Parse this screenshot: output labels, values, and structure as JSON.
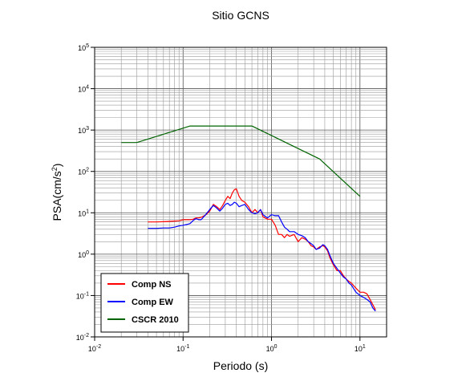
{
  "chart_data": {
    "type": "line",
    "title": "Sitio GCNS",
    "xlabel": "Periodo (s)",
    "ylabel": {
      "base": "PSA(cm/s",
      "sup": "2",
      "tail": ")"
    },
    "xscale": "log",
    "yscale": "log",
    "xlim": [
      0.01,
      20
    ],
    "ylim": [
      0.01,
      100000
    ],
    "grid": true,
    "legend_position": "bottom-left",
    "x_ticks": [
      {
        "base": "10",
        "exp": "-2",
        "value": 0.01
      },
      {
        "base": "10",
        "exp": "-1",
        "value": 0.1
      },
      {
        "base": "10",
        "exp": "0",
        "value": 1
      },
      {
        "base": "10",
        "exp": "1",
        "value": 10
      }
    ],
    "y_ticks": [
      {
        "base": "10",
        "exp": "-2",
        "value": 0.01
      },
      {
        "base": "10",
        "exp": "-1",
        "value": 0.1
      },
      {
        "base": "10",
        "exp": "0",
        "value": 1
      },
      {
        "base": "10",
        "exp": "1",
        "value": 10
      },
      {
        "base": "10",
        "exp": "2",
        "value": 100
      },
      {
        "base": "10",
        "exp": "3",
        "value": 1000
      },
      {
        "base": "10",
        "exp": "4",
        "value": 10000
      },
      {
        "base": "10",
        "exp": "5",
        "value": 100000
      }
    ],
    "series": [
      {
        "name": "Comp NS",
        "color": "#ff0000",
        "x": [
          0.04,
          0.05,
          0.06,
          0.07,
          0.08,
          0.09,
          0.1,
          0.11,
          0.12,
          0.13,
          0.14,
          0.15,
          0.16,
          0.18,
          0.2,
          0.22,
          0.24,
          0.26,
          0.28,
          0.3,
          0.32,
          0.34,
          0.36,
          0.38,
          0.4,
          0.43,
          0.46,
          0.5,
          0.55,
          0.6,
          0.65,
          0.7,
          0.75,
          0.8,
          0.9,
          1.0,
          1.1,
          1.2,
          1.3,
          1.4,
          1.5,
          1.6,
          1.8,
          2.0,
          2.2,
          2.4,
          2.6,
          2.8,
          3.0,
          3.2,
          3.5,
          3.8,
          4.0,
          4.3,
          4.6,
          5.0,
          5.5,
          6.0,
          6.5,
          7.0,
          7.5,
          8.0,
          9.0,
          10.0,
          11.0,
          12.0,
          13.0,
          14.0,
          15.0
        ],
        "values": [
          6.0,
          6.0,
          6.1,
          6.2,
          6.3,
          6.4,
          6.8,
          6.8,
          6.8,
          7.0,
          7.5,
          7.5,
          7.8,
          8.8,
          11.0,
          16.0,
          14.0,
          12.0,
          15.0,
          20.0,
          25.0,
          22.0,
          30.0,
          36.0,
          38.0,
          25.0,
          20.0,
          18.0,
          14.0,
          10.0,
          12.0,
          10.0,
          12.0,
          8.0,
          7.0,
          7.0,
          5.0,
          3.0,
          3.0,
          2.5,
          3.0,
          2.7,
          3.0,
          2.0,
          2.5,
          2.3,
          2.0,
          1.6,
          1.5,
          1.3,
          1.5,
          1.6,
          1.5,
          1.2,
          0.8,
          0.55,
          0.4,
          0.4,
          0.3,
          0.25,
          0.22,
          0.2,
          0.15,
          0.12,
          0.12,
          0.11,
          0.08,
          0.06,
          0.045
        ]
      },
      {
        "name": "Comp EW",
        "color": "#0000ff",
        "x": [
          0.04,
          0.05,
          0.06,
          0.07,
          0.08,
          0.09,
          0.1,
          0.11,
          0.12,
          0.13,
          0.14,
          0.15,
          0.16,
          0.18,
          0.2,
          0.22,
          0.24,
          0.26,
          0.28,
          0.3,
          0.32,
          0.34,
          0.36,
          0.38,
          0.4,
          0.43,
          0.46,
          0.5,
          0.55,
          0.6,
          0.65,
          0.7,
          0.75,
          0.8,
          0.9,
          1.0,
          1.1,
          1.2,
          1.3,
          1.4,
          1.5,
          1.6,
          1.8,
          2.0,
          2.2,
          2.4,
          2.6,
          2.8,
          3.0,
          3.2,
          3.5,
          3.8,
          4.0,
          4.3,
          4.6,
          5.0,
          5.5,
          6.0,
          6.5,
          7.0,
          7.5,
          8.0,
          9.0,
          10.0,
          11.0,
          12.0,
          13.0,
          14.0,
          15.0
        ],
        "values": [
          4.2,
          4.2,
          4.3,
          4.3,
          4.5,
          4.8,
          5.0,
          5.2,
          5.5,
          6.5,
          7.2,
          6.8,
          6.8,
          9.0,
          12.0,
          15.0,
          13.0,
          11.0,
          13.0,
          16.0,
          17.0,
          15.0,
          16.0,
          18.0,
          17.0,
          14.0,
          15.0,
          16.0,
          12.0,
          10.0,
          9.5,
          10.0,
          12.0,
          9.0,
          7.5,
          9.0,
          8.5,
          8.5,
          6.0,
          4.5,
          4.0,
          3.5,
          3.5,
          3.0,
          2.8,
          2.5,
          2.0,
          1.8,
          1.6,
          1.3,
          1.4,
          1.7,
          1.6,
          1.3,
          0.9,
          0.6,
          0.45,
          0.35,
          0.28,
          0.25,
          0.2,
          0.18,
          0.12,
          0.1,
          0.09,
          0.08,
          0.07,
          0.05,
          0.042
        ]
      },
      {
        "name": "CSCR 2010",
        "color": "#006400",
        "x": [
          0.02,
          0.03,
          0.12,
          0.6,
          3.5,
          10.0
        ],
        "values": [
          500,
          500,
          1250,
          1250,
          200,
          25
        ]
      }
    ]
  }
}
